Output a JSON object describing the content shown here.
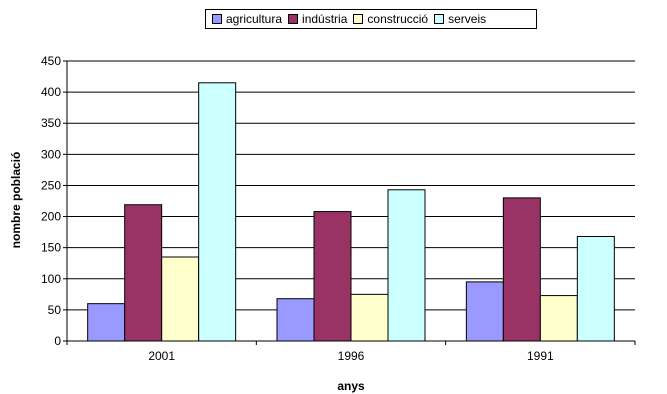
{
  "chart_data": {
    "type": "bar",
    "categories": [
      "2001",
      "1996",
      "1991"
    ],
    "series": [
      {
        "name": "agricultura",
        "color": "#9999FF",
        "values": [
          60,
          68,
          95
        ]
      },
      {
        "name": "indústria",
        "color": "#993366",
        "values": [
          219,
          208,
          230
        ]
      },
      {
        "name": "construcció",
        "color": "#FFFFCC",
        "values": [
          135,
          75,
          73
        ]
      },
      {
        "name": "serveis",
        "color": "#CCFFFF",
        "values": [
          415,
          243,
          168
        ]
      }
    ],
    "xlabel": "anys",
    "ylabel": "nombre població",
    "ylim": [
      0,
      450
    ],
    "yticks": [
      0,
      50,
      100,
      150,
      200,
      250,
      300,
      350,
      400,
      450
    ],
    "grid": true,
    "legend_position": "top"
  }
}
